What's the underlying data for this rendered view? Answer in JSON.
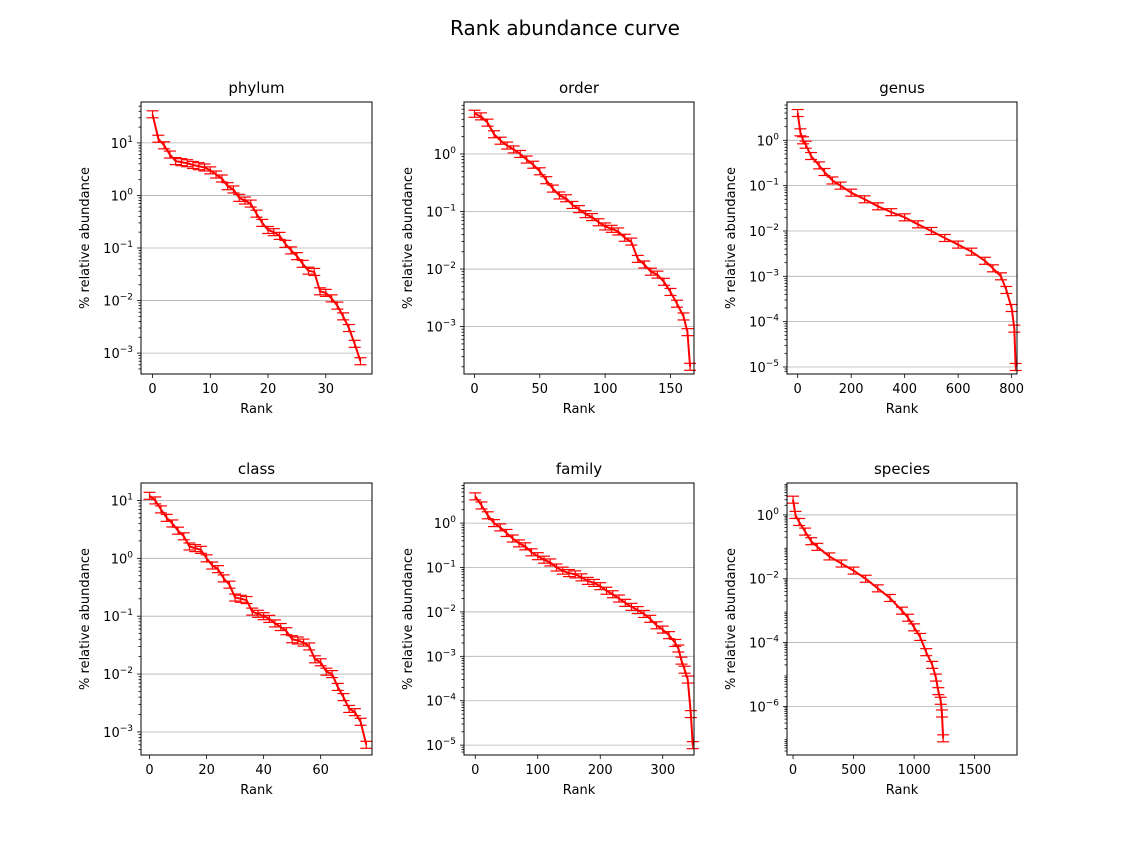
{
  "figure_title": "Rank abundance curve",
  "colors": {
    "series": "#ff0000",
    "grid": "#b0b0b0",
    "axis": "#000000"
  },
  "chart_data": [
    {
      "type": "line",
      "title": "phylum",
      "xlabel": "Rank",
      "ylabel": "% relative abundance",
      "yscale": "log",
      "grid": "y",
      "error_bars": true,
      "xlim": [
        -2,
        38
      ],
      "ylim": [
        0.0004,
        60
      ],
      "xticks": [
        0,
        10,
        20,
        30
      ],
      "yticks": [
        {
          "v": 10,
          "e": "1"
        },
        {
          "v": 1,
          "e": "0"
        },
        {
          "v": 0.1,
          "e": "-1"
        },
        {
          "v": 0.01,
          "e": "-2"
        },
        {
          "v": 0.001,
          "e": "-3"
        }
      ],
      "points": [
        [
          0,
          35
        ],
        [
          1,
          12
        ],
        [
          2,
          9
        ],
        [
          3,
          6
        ],
        [
          4,
          4.5
        ],
        [
          5,
          4.3
        ],
        [
          6,
          4.1
        ],
        [
          7,
          3.8
        ],
        [
          8,
          3.6
        ],
        [
          9,
          3.4
        ],
        [
          10,
          3.0
        ],
        [
          11,
          2.5
        ],
        [
          12,
          2.1
        ],
        [
          13,
          1.5
        ],
        [
          14,
          1.3
        ],
        [
          15,
          0.9
        ],
        [
          16,
          0.8
        ],
        [
          17,
          0.7
        ],
        [
          18,
          0.45
        ],
        [
          19,
          0.3
        ],
        [
          20,
          0.22
        ],
        [
          21,
          0.2
        ],
        [
          22,
          0.17
        ],
        [
          23,
          0.12
        ],
        [
          24,
          0.09
        ],
        [
          25,
          0.07
        ],
        [
          26,
          0.05
        ],
        [
          27,
          0.037
        ],
        [
          28,
          0.035
        ],
        [
          29,
          0.015
        ],
        [
          30,
          0.014
        ],
        [
          31,
          0.011
        ],
        [
          32,
          0.008
        ],
        [
          33,
          0.005
        ],
        [
          34,
          0.003
        ],
        [
          35,
          0.0015
        ],
        [
          36,
          0.0007
        ]
      ]
    },
    {
      "type": "line",
      "title": "order",
      "xlabel": "Rank",
      "ylabel": "% relative abundance",
      "yscale": "log",
      "grid": "y",
      "error_bars": true,
      "xlim": [
        -8,
        168
      ],
      "ylim": [
        0.00015,
        8
      ],
      "xticks": [
        0,
        50,
        100,
        150
      ],
      "yticks": [
        {
          "v": 1,
          "e": "0"
        },
        {
          "v": 0.1,
          "e": "-1"
        },
        {
          "v": 0.01,
          "e": "-2"
        },
        {
          "v": 0.001,
          "e": "-3"
        }
      ],
      "points": [
        [
          0,
          5
        ],
        [
          5,
          4.5
        ],
        [
          10,
          3.5
        ],
        [
          15,
          2.2
        ],
        [
          20,
          1.7
        ],
        [
          25,
          1.4
        ],
        [
          30,
          1.2
        ],
        [
          35,
          1.0
        ],
        [
          40,
          0.8
        ],
        [
          45,
          0.65
        ],
        [
          50,
          0.5
        ],
        [
          55,
          0.35
        ],
        [
          60,
          0.25
        ],
        [
          65,
          0.19
        ],
        [
          70,
          0.17
        ],
        [
          75,
          0.13
        ],
        [
          80,
          0.11
        ],
        [
          85,
          0.09
        ],
        [
          90,
          0.08
        ],
        [
          95,
          0.065
        ],
        [
          100,
          0.055
        ],
        [
          105,
          0.05
        ],
        [
          110,
          0.045
        ],
        [
          115,
          0.035
        ],
        [
          120,
          0.03
        ],
        [
          125,
          0.015
        ],
        [
          130,
          0.012
        ],
        [
          135,
          0.009
        ],
        [
          140,
          0.008
        ],
        [
          145,
          0.006
        ],
        [
          150,
          0.004
        ],
        [
          155,
          0.0025
        ],
        [
          160,
          0.0015
        ],
        [
          163,
          0.0008
        ],
        [
          165,
          0.0002
        ]
      ]
    },
    {
      "type": "line",
      "title": "genus",
      "xlabel": "Rank",
      "ylabel": "% relative abundance",
      "yscale": "log",
      "grid": "y",
      "error_bars": true,
      "xlim": [
        -40,
        820
      ],
      "ylim": [
        7e-06,
        7
      ],
      "xticks": [
        0,
        200,
        400,
        600,
        800
      ],
      "yticks": [
        {
          "v": 1,
          "e": "0"
        },
        {
          "v": 0.1,
          "e": "-1"
        },
        {
          "v": 0.01,
          "e": "-2"
        },
        {
          "v": 0.001,
          "e": "-3"
        },
        {
          "v": 0.0001,
          "e": "-4"
        },
        {
          "v": 1e-05,
          "e": "-5"
        }
      ],
      "points": [
        [
          0,
          4
        ],
        [
          10,
          1.5
        ],
        [
          20,
          1.0
        ],
        [
          30,
          0.8
        ],
        [
          50,
          0.45
        ],
        [
          80,
          0.28
        ],
        [
          100,
          0.2
        ],
        [
          130,
          0.13
        ],
        [
          160,
          0.1
        ],
        [
          200,
          0.07
        ],
        [
          250,
          0.05
        ],
        [
          300,
          0.035
        ],
        [
          350,
          0.026
        ],
        [
          400,
          0.02
        ],
        [
          450,
          0.014
        ],
        [
          500,
          0.01
        ],
        [
          550,
          0.007
        ],
        [
          600,
          0.005
        ],
        [
          650,
          0.0035
        ],
        [
          700,
          0.0022
        ],
        [
          730,
          0.0015
        ],
        [
          760,
          0.001
        ],
        [
          780,
          0.0005
        ],
        [
          800,
          0.0002
        ],
        [
          810,
          7e-05
        ],
        [
          815,
          1e-05
        ]
      ]
    },
    {
      "type": "line",
      "title": "class",
      "xlabel": "Rank",
      "ylabel": "% relative abundance",
      "yscale": "log",
      "grid": "y",
      "error_bars": true,
      "xlim": [
        -3,
        78
      ],
      "ylim": [
        0.0004,
        20
      ],
      "xticks": [
        0,
        20,
        40,
        60
      ],
      "yticks": [
        {
          "v": 10,
          "e": "1"
        },
        {
          "v": 1,
          "e": "0"
        },
        {
          "v": 0.1,
          "e": "-1"
        },
        {
          "v": 0.01,
          "e": "-2"
        },
        {
          "v": 0.001,
          "e": "-3"
        }
      ],
      "points": [
        [
          0,
          12
        ],
        [
          2,
          10
        ],
        [
          4,
          7
        ],
        [
          6,
          5
        ],
        [
          8,
          4
        ],
        [
          10,
          3
        ],
        [
          12,
          2.4
        ],
        [
          14,
          1.6
        ],
        [
          16,
          1.5
        ],
        [
          18,
          1.4
        ],
        [
          20,
          1.0
        ],
        [
          22,
          0.75
        ],
        [
          24,
          0.65
        ],
        [
          26,
          0.45
        ],
        [
          28,
          0.35
        ],
        [
          30,
          0.21
        ],
        [
          32,
          0.2
        ],
        [
          34,
          0.19
        ],
        [
          36,
          0.12
        ],
        [
          38,
          0.11
        ],
        [
          40,
          0.1
        ],
        [
          42,
          0.09
        ],
        [
          44,
          0.075
        ],
        [
          46,
          0.065
        ],
        [
          48,
          0.055
        ],
        [
          50,
          0.04
        ],
        [
          52,
          0.038
        ],
        [
          54,
          0.035
        ],
        [
          56,
          0.03
        ],
        [
          58,
          0.018
        ],
        [
          60,
          0.016
        ],
        [
          62,
          0.011
        ],
        [
          64,
          0.01
        ],
        [
          66,
          0.006
        ],
        [
          68,
          0.004
        ],
        [
          70,
          0.0025
        ],
        [
          72,
          0.0022
        ],
        [
          74,
          0.0015
        ],
        [
          76,
          0.0006
        ]
      ]
    },
    {
      "type": "line",
      "title": "family",
      "xlabel": "Rank",
      "ylabel": "% relative abundance",
      "yscale": "log",
      "grid": "y",
      "error_bars": true,
      "xlim": [
        -18,
        350
      ],
      "ylim": [
        6e-06,
        8
      ],
      "xticks": [
        0,
        100,
        200,
        300
      ],
      "yticks": [
        {
          "v": 1,
          "e": "0"
        },
        {
          "v": 0.1,
          "e": "-1"
        },
        {
          "v": 0.01,
          "e": "-2"
        },
        {
          "v": 0.001,
          "e": "-3"
        },
        {
          "v": 0.0001,
          "e": "-4"
        },
        {
          "v": 1e-05,
          "e": "-5"
        }
      ],
      "points": [
        [
          0,
          4
        ],
        [
          10,
          2.5
        ],
        [
          20,
          1.5
        ],
        [
          30,
          1.0
        ],
        [
          40,
          0.8
        ],
        [
          50,
          0.6
        ],
        [
          60,
          0.45
        ],
        [
          70,
          0.35
        ],
        [
          80,
          0.3
        ],
        [
          90,
          0.22
        ],
        [
          100,
          0.18
        ],
        [
          110,
          0.15
        ],
        [
          120,
          0.13
        ],
        [
          130,
          0.1
        ],
        [
          140,
          0.085
        ],
        [
          150,
          0.075
        ],
        [
          160,
          0.07
        ],
        [
          170,
          0.06
        ],
        [
          180,
          0.05
        ],
        [
          190,
          0.045
        ],
        [
          200,
          0.038
        ],
        [
          210,
          0.03
        ],
        [
          220,
          0.025
        ],
        [
          230,
          0.02
        ],
        [
          240,
          0.016
        ],
        [
          250,
          0.013
        ],
        [
          260,
          0.011
        ],
        [
          270,
          0.009
        ],
        [
          280,
          0.007
        ],
        [
          290,
          0.005
        ],
        [
          300,
          0.004
        ],
        [
          310,
          0.003
        ],
        [
          320,
          0.002
        ],
        [
          325,
          0.0015
        ],
        [
          330,
          0.0008
        ],
        [
          335,
          0.0005
        ],
        [
          340,
          0.0003
        ],
        [
          345,
          5e-05
        ],
        [
          348,
          1e-05
        ]
      ]
    },
    {
      "type": "line",
      "title": "species",
      "xlabel": "Rank",
      "ylabel": "% relative abundance",
      "yscale": "log",
      "grid": "y",
      "error_bars": true,
      "xlim": [
        -50,
        1850
      ],
      "ylim": [
        3e-08,
        10
      ],
      "xticks": [
        0,
        500,
        1000,
        1500
      ],
      "yticks": [
        {
          "v": 1,
          "e": "0"
        },
        {
          "v": 0.01,
          "e": "-2"
        },
        {
          "v": 0.0001,
          "e": "-4"
        },
        {
          "v": 1e-06,
          "e": "-6"
        }
      ],
      "points": [
        [
          0,
          3
        ],
        [
          20,
          1.0
        ],
        [
          50,
          0.6
        ],
        [
          100,
          0.3
        ],
        [
          150,
          0.15
        ],
        [
          200,
          0.1
        ],
        [
          300,
          0.05
        ],
        [
          400,
          0.03
        ],
        [
          500,
          0.018
        ],
        [
          600,
          0.01
        ],
        [
          700,
          0.005
        ],
        [
          800,
          0.0025
        ],
        [
          900,
          0.001
        ],
        [
          950,
          0.0006
        ],
        [
          1000,
          0.0003
        ],
        [
          1050,
          0.00015
        ],
        [
          1100,
          5e-05
        ],
        [
          1150,
          2e-05
        ],
        [
          1180,
          8e-06
        ],
        [
          1200,
          3e-06
        ],
        [
          1220,
          1.5e-06
        ],
        [
          1230,
          6e-07
        ],
        [
          1240,
          1e-07
        ]
      ]
    }
  ]
}
